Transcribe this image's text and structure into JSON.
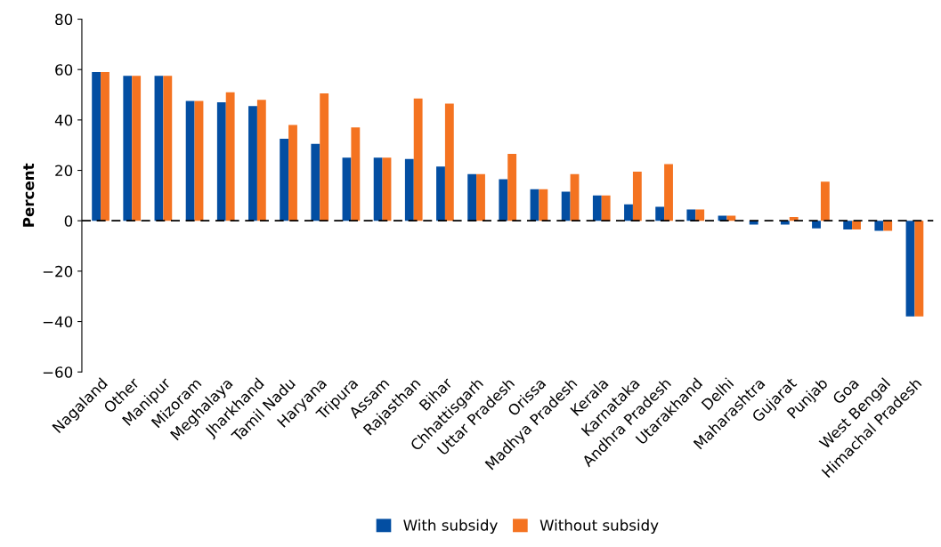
{
  "chart_data": {
    "type": "bar",
    "ylabel": "Percent",
    "categories": [
      "Nagaland",
      "Other",
      "Manipur",
      "Mizoram",
      "Meghalaya",
      "Jharkhand",
      "Tamil Nadu",
      "Haryana",
      "Tripura",
      "Assam",
      "Rajasthan",
      "Bihar",
      "Chhattisgarh",
      "Uttar Pradesh",
      "Orissa",
      "Madhya Pradesh",
      "Kerala",
      "Karnataka",
      "Andhra Pradesh",
      "Utarakhand",
      "Delhi",
      "Maharashtra",
      "Gujarat",
      "Punjab",
      "Goa",
      "West Bengal",
      "Himachal Pradesh"
    ],
    "series": [
      {
        "name": "With subsidy",
        "color": "#034ea2",
        "values": [
          59,
          57.5,
          57.5,
          47.5,
          47,
          45.5,
          32.5,
          30.5,
          25,
          25,
          24.5,
          21.5,
          18.5,
          16.5,
          12.5,
          11.5,
          10,
          6.5,
          5.5,
          4.5,
          2,
          -1.5,
          -1.5,
          -3,
          -3.5,
          -4,
          -38
        ]
      },
      {
        "name": "Without subsidy",
        "color": "#f47321",
        "values": [
          59,
          57.5,
          57.5,
          47.5,
          51,
          48,
          38,
          50.5,
          37,
          25,
          48.5,
          46.5,
          18.5,
          26.5,
          12.5,
          18.5,
          10,
          19.5,
          22.5,
          4.5,
          2,
          0,
          1.5,
          15.5,
          -3.5,
          -4,
          -38
        ]
      }
    ],
    "ylim": [
      -60,
      80
    ],
    "yticks": [
      {
        "value": -60,
        "label": "−60"
      },
      {
        "value": -40,
        "label": "−40"
      },
      {
        "value": -20,
        "label": "−20"
      },
      0,
      20,
      40,
      60,
      80
    ],
    "ref_lines": [
      {
        "axis": "y",
        "value": 0,
        "color": "#000000",
        "line_style": "dashed"
      }
    ],
    "grid": false,
    "legend": "bottom"
  }
}
